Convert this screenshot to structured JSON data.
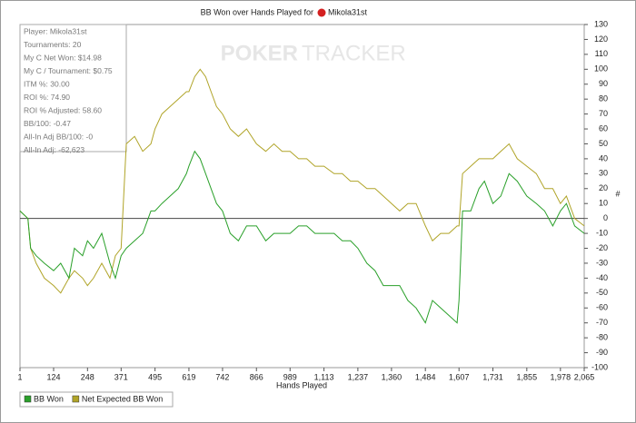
{
  "chart_data": {
    "type": "line",
    "title": "BB Won over Hands Played for",
    "player": "Mikola31st",
    "watermark": [
      "POKER",
      "TRACKER"
    ],
    "stats": [
      "Player: Mikola31st",
      "Tournaments: 20",
      "My C Net Won: $14.98",
      "My C / Tournament: $0.75",
      "ITM %: 30.00",
      "ROI %: 74.90",
      "ROI % Adjusted: 58.60",
      "BB/100: -0.47",
      "All-In Adj BB/100: -0",
      "All-In Adj: -62,623"
    ],
    "x_label": "Hands Played",
    "y_label": "#",
    "x": [
      1,
      30,
      40,
      60,
      90,
      124,
      150,
      180,
      200,
      230,
      248,
      270,
      300,
      330,
      350,
      371,
      390,
      420,
      450,
      480,
      495,
      520,
      550,
      580,
      610,
      619,
      640,
      660,
      680,
      700,
      720,
      742,
      770,
      800,
      830,
      866,
      900,
      930,
      960,
      989,
      1020,
      1050,
      1080,
      1113,
      1150,
      1180,
      1210,
      1237,
      1270,
      1300,
      1330,
      1360,
      1390,
      1420,
      1450,
      1484,
      1510,
      1540,
      1570,
      1600,
      1607,
      1620,
      1650,
      1680,
      1700,
      1731,
      1760,
      1790,
      1820,
      1855,
      1890,
      1920,
      1950,
      1978,
      2000,
      2030,
      2065
    ],
    "series": [
      {
        "name": "BB Won",
        "color": "#2aa02a",
        "values": [
          5,
          0,
          -20,
          -25,
          -30,
          -35,
          -30,
          -40,
          -20,
          -25,
          -15,
          -20,
          -10,
          -30,
          -40,
          -25,
          -20,
          -15,
          -10,
          5,
          5,
          10,
          15,
          20,
          30,
          35,
          45,
          40,
          30,
          20,
          10,
          5,
          -10,
          -15,
          -5,
          -5,
          -15,
          -10,
          -10,
          -10,
          -5,
          -5,
          -10,
          -10,
          -10,
          -15,
          -15,
          -20,
          -30,
          -35,
          -45,
          -45,
          -45,
          -55,
          -60,
          -70,
          -55,
          -60,
          -65,
          -70,
          -55,
          5,
          5,
          20,
          25,
          10,
          15,
          30,
          25,
          15,
          10,
          5,
          -5,
          5,
          10,
          -5,
          -10
        ]
      },
      {
        "name": "Net Expected BB Won",
        "color": "#b0a428",
        "values": [
          5,
          0,
          -20,
          -30,
          -40,
          -45,
          -50,
          -40,
          -35,
          -40,
          -45,
          -40,
          -30,
          -40,
          -25,
          -20,
          50,
          55,
          45,
          50,
          60,
          70,
          75,
          80,
          85,
          85,
          95,
          100,
          95,
          85,
          75,
          70,
          60,
          55,
          60,
          50,
          45,
          50,
          45,
          45,
          40,
          40,
          35,
          35,
          30,
          30,
          25,
          25,
          20,
          20,
          15,
          10,
          5,
          10,
          10,
          -5,
          -15,
          -10,
          -10,
          -5,
          -5,
          30,
          35,
          40,
          40,
          40,
          45,
          50,
          40,
          35,
          30,
          20,
          20,
          10,
          15,
          0,
          -5
        ]
      }
    ],
    "xlim": [
      1,
      2065
    ],
    "xticks": [
      1,
      124,
      248,
      371,
      495,
      619,
      742,
      866,
      989,
      {
        "value": 1113,
        "label": "1,113"
      },
      {
        "value": 1237,
        "label": "1,237"
      },
      {
        "value": 1360,
        "label": "1,360"
      },
      {
        "value": 1484,
        "label": "1,484"
      },
      {
        "value": 1607,
        "label": "1,607"
      },
      {
        "value": 1731,
        "label": "1,731"
      },
      {
        "value": 1855,
        "label": "1,855"
      },
      {
        "value": 1978,
        "label": "1,978"
      },
      {
        "value": 2065,
        "label": "2,065"
      }
    ],
    "ylim": [
      -100,
      130
    ],
    "yticks": [
      -100,
      -90,
      -80,
      -70,
      -60,
      -50,
      -40,
      -30,
      -20,
      -10,
      0,
      10,
      20,
      30,
      40,
      50,
      60,
      70,
      80,
      90,
      100,
      110,
      120,
      130
    ],
    "y_axis_side": "right",
    "grid": false
  }
}
